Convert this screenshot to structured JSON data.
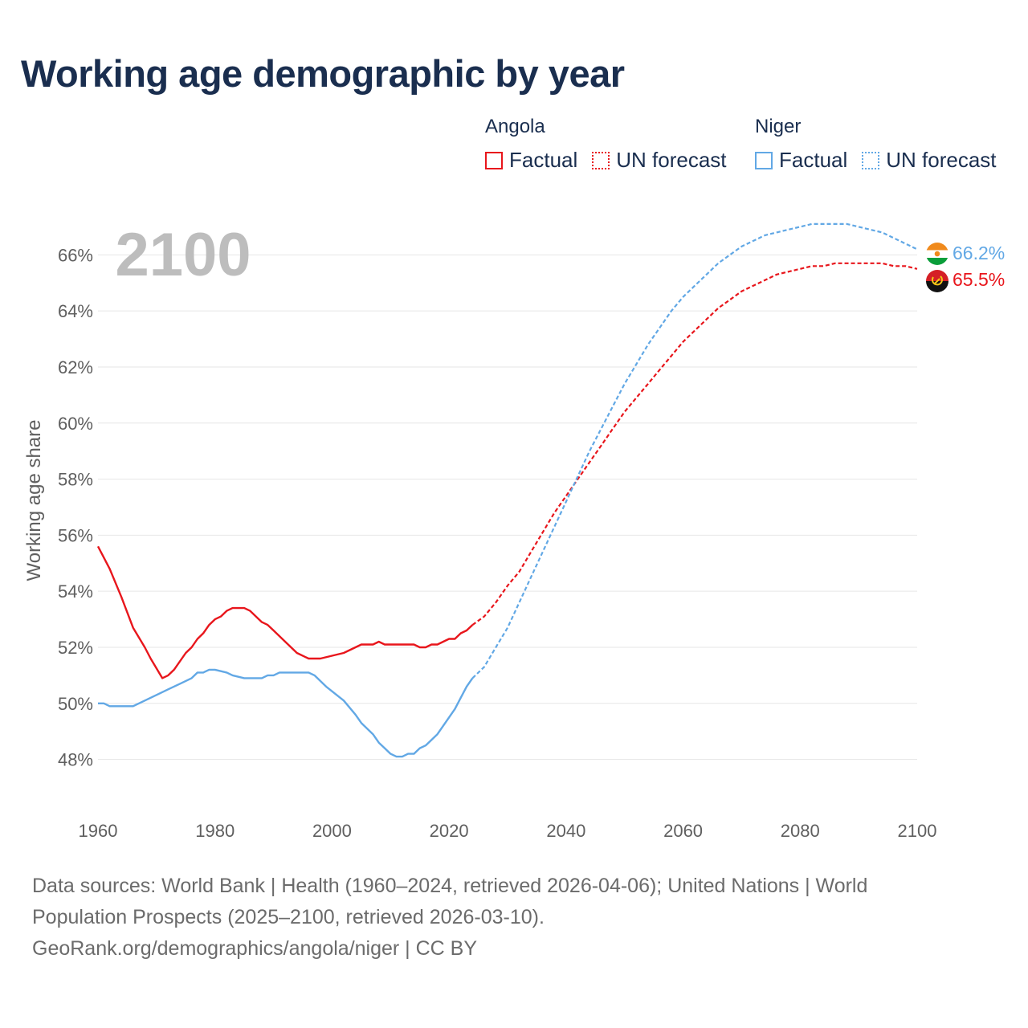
{
  "chart_data": {
    "type": "line",
    "title": "Working age demographic by year",
    "xlabel": "",
    "ylabel": "Working age share",
    "year_label": "2100",
    "xlim": [
      1960,
      2100
    ],
    "ylim": [
      46.9,
      67.7
    ],
    "x_ticks": [
      1960,
      1980,
      2000,
      2020,
      2040,
      2060,
      2080,
      2100
    ],
    "y_ticks": [
      48,
      50,
      52,
      54,
      56,
      58,
      60,
      62,
      64,
      66
    ],
    "y_tick_labels": [
      "48%",
      "50%",
      "52%",
      "54%",
      "56%",
      "58%",
      "60%",
      "62%",
      "64%",
      "66%"
    ],
    "grid": true,
    "factual_range": [
      1960,
      2024
    ],
    "forecast_range": [
      2024,
      2100
    ],
    "series": [
      {
        "name": "Angola",
        "color": "#e8161c",
        "end_label": "65.5%",
        "flag": "angola-flag",
        "factual": [
          [
            1960,
            55.6
          ],
          [
            1962,
            54.8
          ],
          [
            1964,
            53.8
          ],
          [
            1966,
            52.7
          ],
          [
            1968,
            52.0
          ],
          [
            1969,
            51.6
          ],
          [
            1971,
            50.9
          ],
          [
            1972,
            51.0
          ],
          [
            1973,
            51.2
          ],
          [
            1975,
            51.8
          ],
          [
            1976,
            52.0
          ],
          [
            1977,
            52.3
          ],
          [
            1978,
            52.5
          ],
          [
            1979,
            52.8
          ],
          [
            1980,
            53.0
          ],
          [
            1981,
            53.1
          ],
          [
            1982,
            53.3
          ],
          [
            1983,
            53.4
          ],
          [
            1984,
            53.4
          ],
          [
            1985,
            53.4
          ],
          [
            1986,
            53.3
          ],
          [
            1987,
            53.1
          ],
          [
            1988,
            52.9
          ],
          [
            1989,
            52.8
          ],
          [
            1990,
            52.6
          ],
          [
            1992,
            52.2
          ],
          [
            1994,
            51.8
          ],
          [
            1996,
            51.6
          ],
          [
            1998,
            51.6
          ],
          [
            2000,
            51.7
          ],
          [
            2002,
            51.8
          ],
          [
            2004,
            52.0
          ],
          [
            2005,
            52.1
          ],
          [
            2007,
            52.1
          ],
          [
            2008,
            52.2
          ],
          [
            2009,
            52.1
          ],
          [
            2011,
            52.1
          ],
          [
            2014,
            52.1
          ],
          [
            2015,
            52.0
          ],
          [
            2016,
            52.0
          ],
          [
            2017,
            52.1
          ],
          [
            2018,
            52.1
          ],
          [
            2020,
            52.3
          ],
          [
            2021,
            52.3
          ],
          [
            2022,
            52.5
          ],
          [
            2023,
            52.6
          ],
          [
            2024,
            52.8
          ]
        ],
        "forecast": [
          [
            2024,
            52.8
          ],
          [
            2026,
            53.1
          ],
          [
            2028,
            53.6
          ],
          [
            2030,
            54.2
          ],
          [
            2032,
            54.7
          ],
          [
            2034,
            55.4
          ],
          [
            2036,
            56.1
          ],
          [
            2038,
            56.8
          ],
          [
            2040,
            57.4
          ],
          [
            2042,
            58.0
          ],
          [
            2044,
            58.6
          ],
          [
            2046,
            59.2
          ],
          [
            2048,
            59.8
          ],
          [
            2050,
            60.4
          ],
          [
            2052,
            60.9
          ],
          [
            2054,
            61.4
          ],
          [
            2056,
            61.9
          ],
          [
            2058,
            62.4
          ],
          [
            2060,
            62.9
          ],
          [
            2062,
            63.3
          ],
          [
            2064,
            63.7
          ],
          [
            2066,
            64.1
          ],
          [
            2068,
            64.4
          ],
          [
            2070,
            64.7
          ],
          [
            2072,
            64.9
          ],
          [
            2074,
            65.1
          ],
          [
            2076,
            65.3
          ],
          [
            2078,
            65.4
          ],
          [
            2080,
            65.5
          ],
          [
            2082,
            65.6
          ],
          [
            2084,
            65.6
          ],
          [
            2086,
            65.7
          ],
          [
            2090,
            65.7
          ],
          [
            2094,
            65.7
          ],
          [
            2096,
            65.6
          ],
          [
            2098,
            65.6
          ],
          [
            2100,
            65.5
          ]
        ]
      },
      {
        "name": "Niger",
        "color": "#62a8e5",
        "end_label": "66.2%",
        "flag": "niger-flag",
        "factual": [
          [
            1960,
            50.0
          ],
          [
            1961,
            50.0
          ],
          [
            1962,
            49.9
          ],
          [
            1966,
            49.9
          ],
          [
            1968,
            50.1
          ],
          [
            1970,
            50.3
          ],
          [
            1972,
            50.5
          ],
          [
            1974,
            50.7
          ],
          [
            1976,
            50.9
          ],
          [
            1977,
            51.1
          ],
          [
            1978,
            51.1
          ],
          [
            1979,
            51.2
          ],
          [
            1980,
            51.2
          ],
          [
            1982,
            51.1
          ],
          [
            1983,
            51.0
          ],
          [
            1985,
            50.9
          ],
          [
            1988,
            50.9
          ],
          [
            1989,
            51.0
          ],
          [
            1990,
            51.0
          ],
          [
            1991,
            51.1
          ],
          [
            1995,
            51.1
          ],
          [
            1996,
            51.1
          ],
          [
            1997,
            51.0
          ],
          [
            1999,
            50.6
          ],
          [
            2002,
            50.1
          ],
          [
            2004,
            49.6
          ],
          [
            2005,
            49.3
          ],
          [
            2007,
            48.9
          ],
          [
            2008,
            48.6
          ],
          [
            2009,
            48.4
          ],
          [
            2010,
            48.2
          ],
          [
            2011,
            48.1
          ],
          [
            2012,
            48.1
          ],
          [
            2013,
            48.2
          ],
          [
            2014,
            48.2
          ],
          [
            2015,
            48.4
          ],
          [
            2016,
            48.5
          ],
          [
            2017,
            48.7
          ],
          [
            2018,
            48.9
          ],
          [
            2019,
            49.2
          ],
          [
            2020,
            49.5
          ],
          [
            2021,
            49.8
          ],
          [
            2022,
            50.2
          ],
          [
            2023,
            50.6
          ],
          [
            2024,
            50.9
          ]
        ],
        "forecast": [
          [
            2024,
            50.9
          ],
          [
            2026,
            51.3
          ],
          [
            2028,
            52.0
          ],
          [
            2030,
            52.7
          ],
          [
            2032,
            53.6
          ],
          [
            2034,
            54.5
          ],
          [
            2036,
            55.4
          ],
          [
            2038,
            56.3
          ],
          [
            2040,
            57.2
          ],
          [
            2042,
            58.1
          ],
          [
            2044,
            59.0
          ],
          [
            2046,
            59.8
          ],
          [
            2048,
            60.6
          ],
          [
            2050,
            61.4
          ],
          [
            2052,
            62.1
          ],
          [
            2054,
            62.8
          ],
          [
            2056,
            63.4
          ],
          [
            2058,
            64.0
          ],
          [
            2060,
            64.5
          ],
          [
            2062,
            64.9
          ],
          [
            2064,
            65.3
          ],
          [
            2066,
            65.7
          ],
          [
            2068,
            66.0
          ],
          [
            2070,
            66.3
          ],
          [
            2072,
            66.5
          ],
          [
            2074,
            66.7
          ],
          [
            2076,
            66.8
          ],
          [
            2078,
            66.9
          ],
          [
            2080,
            67.0
          ],
          [
            2082,
            67.1
          ],
          [
            2088,
            67.1
          ],
          [
            2090,
            67.0
          ],
          [
            2092,
            66.9
          ],
          [
            2094,
            66.8
          ],
          [
            2096,
            66.6
          ],
          [
            2098,
            66.4
          ],
          [
            2100,
            66.2
          ]
        ]
      }
    ]
  },
  "legend": {
    "groups": [
      {
        "country": "Angola",
        "factual_label": "Factual",
        "forecast_label": "UN forecast",
        "color": "#e8161c"
      },
      {
        "country": "Niger",
        "factual_label": "Factual",
        "forecast_label": "UN forecast",
        "color": "#62a8e5"
      }
    ]
  },
  "footer": {
    "sources": "Data sources: World Bank | Health (1960–2024, retrieved 2026-04-06); United Nations | World Population Prospects (2025–2100, retrieved 2026-03-10).",
    "link": "GeoRank.org/demographics/angola/niger | CC BY"
  },
  "colors": {
    "title": "#1a2e4f",
    "axis_text": "#5f5f5f",
    "grid": "#e6e6e6",
    "year_watermark": "#bdbdbd"
  }
}
